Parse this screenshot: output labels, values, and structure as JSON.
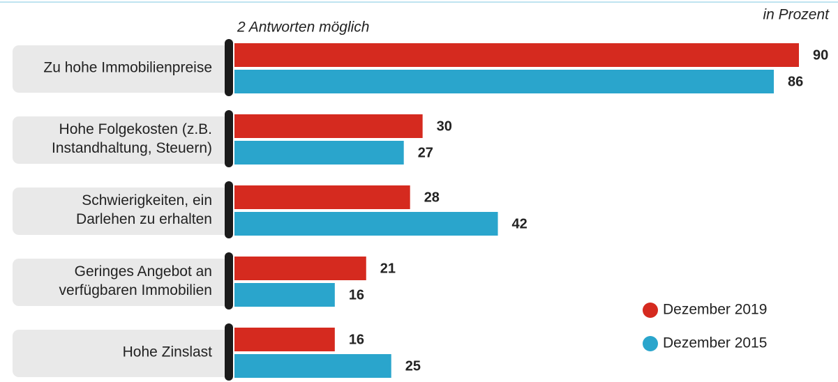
{
  "chart_data": {
    "type": "bar",
    "orientation": "horizontal",
    "subtitle": "2 Antworten möglich",
    "unit_label": "in Prozent",
    "categories": [
      [
        "Zu hohe Immobilienpreise"
      ],
      [
        "Hohe Folgekosten (z.B.",
        "Instandhaltung, Steuern)"
      ],
      [
        "Schwierigkeiten, ein",
        "Darlehen zu erhalten"
      ],
      [
        "Geringes Angebot an",
        "verfügbaren Immobilien"
      ],
      [
        "Hohe Zinslast"
      ]
    ],
    "series": [
      {
        "name": "Dezember 2019",
        "color": "#d52a1f",
        "values": [
          90,
          30,
          28,
          21,
          16
        ]
      },
      {
        "name": "Dezember 2015",
        "color": "#2aa5cc",
        "values": [
          86,
          27,
          42,
          16,
          25
        ]
      }
    ],
    "xlim": [
      0,
      90
    ],
    "legend": "bottom-right"
  }
}
